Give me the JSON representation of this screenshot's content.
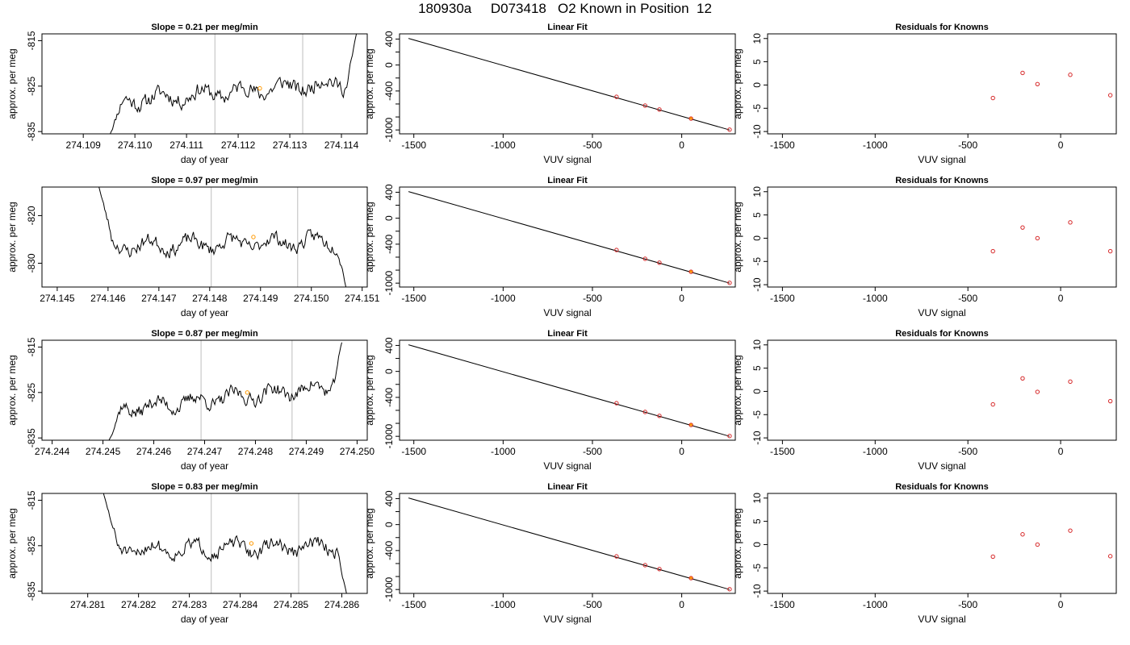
{
  "title": "180930a     D073418   O2 Known in Position  12",
  "colors": {
    "trace": "#000000",
    "marker_line": "#c8c8c8",
    "point_red": "#d62728",
    "point_orange": "#ff9900",
    "frame": "#000000"
  },
  "chart_data": [
    {
      "type": "line",
      "row": 0,
      "col": 0,
      "title": "Slope =  0.21  per meg/min",
      "xlabel": "day of year",
      "ylabel": "approx. per meg",
      "xlim": [
        274.1082,
        274.1145
      ],
      "ylim": [
        -835.5,
        -813.5
      ],
      "xticks": [
        "274.109",
        "274.110",
        "274.111",
        "274.112",
        "274.113",
        "274.114"
      ],
      "yticks": [
        "-815",
        "-825",
        "-835"
      ],
      "vlines": [
        274.11155,
        274.11325
      ],
      "trace": {
        "start": 274.1095,
        "end": 274.1143,
        "n": 220,
        "base": -828.5,
        "trend": 4.5,
        "noise": 2.6,
        "seed": 11,
        "head": -836,
        "tail": -813
      },
      "highlight": {
        "x": 274.11242,
        "y": -825.5
      }
    },
    {
      "type": "scatter",
      "row": 0,
      "col": 1,
      "title": "Linear Fit",
      "xlabel": "VUV signal",
      "ylabel": "approx. per meg",
      "xlim": [
        -1580,
        300
      ],
      "ylim": [
        -1060,
        480
      ],
      "xticks": [
        "-1500",
        "-1000",
        "-500",
        "0"
      ],
      "yticks": [
        "400",
        "0",
        "-400",
        "-1000"
      ],
      "yticks_minor": [
        "200",
        "-200",
        "-600",
        "-800"
      ],
      "fit_line": [
        [
          -1530,
          410
        ],
        [
          268,
          -1000
        ]
      ],
      "points": [
        [
          -365,
          -490
        ],
        [
          -205,
          -625
        ],
        [
          -125,
          -685
        ],
        [
          52,
          -825
        ],
        [
          268,
          -995
        ]
      ],
      "highlight": [
        52,
        -822
      ]
    },
    {
      "type": "scatter",
      "row": 0,
      "col": 2,
      "title": "Residuals for Knowns",
      "xlabel": "VUV signal",
      "ylabel": "approx. per meg",
      "xlim": [
        -1580,
        300
      ],
      "ylim": [
        -10.5,
        11
      ],
      "xticks": [
        "-1500",
        "-1000",
        "-500",
        "0"
      ],
      "yticks": [
        "10",
        "5",
        "0",
        "-5",
        "-10"
      ],
      "points": [
        [
          -365,
          -2.8
        ],
        [
          -205,
          2.6
        ],
        [
          -125,
          0.2
        ],
        [
          52,
          2.2
        ],
        [
          268,
          -2.2
        ]
      ]
    },
    {
      "type": "line",
      "row": 1,
      "col": 0,
      "title": "Slope =  0.97  per meg/min",
      "xlabel": "day of year",
      "ylabel": "approx. per meg",
      "xlim": [
        274.1447,
        274.1511
      ],
      "ylim": [
        -835,
        -814
      ],
      "xticks": [
        "274.145",
        "274.146",
        "274.147",
        "274.148",
        "274.149",
        "274.150",
        "274.151"
      ],
      "yticks": [
        "-820",
        "-830"
      ],
      "vlines": [
        274.14803,
        274.14973
      ],
      "trace": {
        "start": 274.1458,
        "end": 274.1507,
        "n": 220,
        "base": -826.5,
        "trend": 1.2,
        "noise": 2.2,
        "seed": 23,
        "head": -813,
        "tail": -836
      },
      "highlight": {
        "x": 274.14886,
        "y": -824.5
      }
    },
    {
      "type": "scatter",
      "row": 1,
      "col": 1,
      "title": "Linear Fit",
      "xlabel": "VUV signal",
      "ylabel": "approx. per meg",
      "xlim": [
        -1580,
        300
      ],
      "ylim": [
        -1060,
        480
      ],
      "xticks": [
        "-1500",
        "-1000",
        "-500",
        "0"
      ],
      "yticks": [
        "400",
        "0",
        "-400",
        "-1000"
      ],
      "yticks_minor": [
        "200",
        "-200",
        "-600",
        "-800"
      ],
      "fit_line": [
        [
          -1530,
          410
        ],
        [
          268,
          -1000
        ]
      ],
      "points": [
        [
          -365,
          -490
        ],
        [
          -205,
          -625
        ],
        [
          -125,
          -685
        ],
        [
          52,
          -825
        ],
        [
          268,
          -995
        ]
      ],
      "highlight": [
        52,
        -822
      ]
    },
    {
      "type": "scatter",
      "row": 1,
      "col": 2,
      "title": "Residuals for Knowns",
      "xlabel": "VUV signal",
      "ylabel": "approx. per meg",
      "xlim": [
        -1580,
        300
      ],
      "ylim": [
        -10.5,
        11
      ],
      "xticks": [
        "-1500",
        "-1000",
        "-500",
        "0"
      ],
      "yticks": [
        "10",
        "5",
        "0",
        "-5",
        "-10"
      ],
      "points": [
        [
          -365,
          -2.8
        ],
        [
          -205,
          2.3
        ],
        [
          -125,
          0.0
        ],
        [
          52,
          3.4
        ],
        [
          268,
          -2.8
        ]
      ]
    },
    {
      "type": "line",
      "row": 2,
      "col": 0,
      "title": "Slope =  0.87  per meg/min",
      "xlabel": "day of year",
      "ylabel": "approx. per meg",
      "xlim": [
        274.2438,
        274.2502
      ],
      "ylim": [
        -835.5,
        -813.5
      ],
      "xticks": [
        "274.244",
        "274.245",
        "274.246",
        "274.247",
        "274.248",
        "274.249",
        "274.250"
      ],
      "yticks": [
        "-815",
        "-825",
        "-835"
      ],
      "vlines": [
        274.24693,
        274.24872
      ],
      "trace": {
        "start": 274.2451,
        "end": 274.2497,
        "n": 220,
        "base": -829,
        "trend": 5.5,
        "noise": 2.3,
        "seed": 37,
        "head": -836,
        "tail": -814
      },
      "highlight": {
        "x": 274.24784,
        "y": -825.0
      }
    },
    {
      "type": "scatter",
      "row": 2,
      "col": 1,
      "title": "Linear Fit",
      "xlabel": "VUV signal",
      "ylabel": "approx. per meg",
      "xlim": [
        -1580,
        300
      ],
      "ylim": [
        -1060,
        480
      ],
      "xticks": [
        "-1500",
        "-1000",
        "-500",
        "0"
      ],
      "yticks": [
        "400",
        "0",
        "-400",
        "-1000"
      ],
      "yticks_minor": [
        "200",
        "-200",
        "-600",
        "-800"
      ],
      "fit_line": [
        [
          -1530,
          410
        ],
        [
          268,
          -1000
        ]
      ],
      "points": [
        [
          -365,
          -490
        ],
        [
          -205,
          -625
        ],
        [
          -125,
          -685
        ],
        [
          52,
          -825
        ],
        [
          268,
          -995
        ]
      ],
      "highlight": [
        52,
        -822
      ]
    },
    {
      "type": "scatter",
      "row": 2,
      "col": 2,
      "title": "Residuals for Knowns",
      "xlabel": "VUV signal",
      "ylabel": "approx. per meg",
      "xlim": [
        -1580,
        300
      ],
      "ylim": [
        -10.5,
        11
      ],
      "xticks": [
        "-1500",
        "-1000",
        "-500",
        "0"
      ],
      "yticks": [
        "10",
        "5",
        "0",
        "-5",
        "-10"
      ],
      "points": [
        [
          -365,
          -2.8
        ],
        [
          -205,
          2.8
        ],
        [
          -125,
          -0.1
        ],
        [
          52,
          2.1
        ],
        [
          268,
          -2.1
        ]
      ]
    },
    {
      "type": "line",
      "row": 3,
      "col": 0,
      "title": "Slope =  0.83  per meg/min",
      "xlabel": "day of year",
      "ylabel": "approx. per meg",
      "xlim": [
        274.2801,
        274.2865
      ],
      "ylim": [
        -835.5,
        -813.5
      ],
      "xticks": [
        "274.281",
        "274.282",
        "274.283",
        "274.284",
        "274.285",
        "274.286"
      ],
      "yticks": [
        "-815",
        "-825",
        "-835"
      ],
      "vlines": [
        274.28343,
        274.28515
      ],
      "trace": {
        "start": 274.2813,
        "end": 274.2861,
        "n": 220,
        "base": -826,
        "trend": 0.8,
        "noise": 2.2,
        "seed": 51,
        "head": -813,
        "tail": -836
      },
      "highlight": {
        "x": 274.28422,
        "y": -824.5
      }
    },
    {
      "type": "scatter",
      "row": 3,
      "col": 1,
      "title": "Linear Fit",
      "xlabel": "VUV signal",
      "ylabel": "approx. per meg",
      "xlim": [
        -1580,
        300
      ],
      "ylim": [
        -1060,
        480
      ],
      "xticks": [
        "-1500",
        "-1000",
        "-500",
        "0"
      ],
      "yticks": [
        "400",
        "0",
        "-400",
        "-1000"
      ],
      "yticks_minor": [
        "200",
        "-200",
        "-600",
        "-800"
      ],
      "fit_line": [
        [
          -1530,
          410
        ],
        [
          268,
          -1000
        ]
      ],
      "points": [
        [
          -365,
          -490
        ],
        [
          -205,
          -625
        ],
        [
          -125,
          -685
        ],
        [
          52,
          -825
        ],
        [
          268,
          -995
        ]
      ],
      "highlight": [
        52,
        -822
      ]
    },
    {
      "type": "scatter",
      "row": 3,
      "col": 2,
      "title": "Residuals for Knowns",
      "xlabel": "VUV signal",
      "ylabel": "approx. per meg",
      "xlim": [
        -1580,
        300
      ],
      "ylim": [
        -10.5,
        11
      ],
      "xticks": [
        "-1500",
        "-1000",
        "-500",
        "0"
      ],
      "yticks": [
        "10",
        "5",
        "0",
        "-5",
        "-10"
      ],
      "points": [
        [
          -365,
          -2.6
        ],
        [
          -205,
          2.2
        ],
        [
          -125,
          0.0
        ],
        [
          52,
          3.0
        ],
        [
          268,
          -2.5
        ]
      ]
    }
  ]
}
